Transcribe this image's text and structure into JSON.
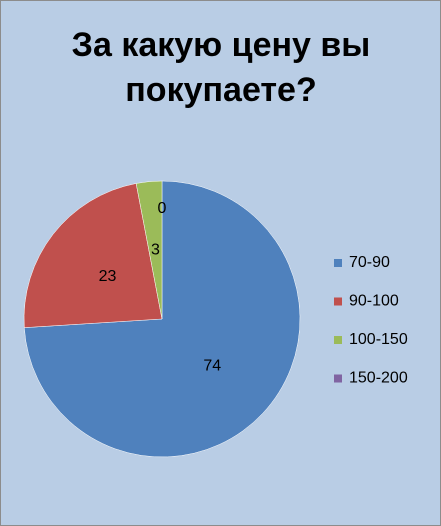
{
  "chart_data": {
    "type": "pie",
    "title": "За какую цену вы покупаете?",
    "categories": [
      "70-90",
      "90-100",
      "100-150",
      "150-200"
    ],
    "values": [
      74,
      23,
      3,
      0
    ],
    "colors": [
      "#4f81bd",
      "#c0504d",
      "#9bbb59",
      "#8064a2"
    ],
    "legend": "right"
  }
}
